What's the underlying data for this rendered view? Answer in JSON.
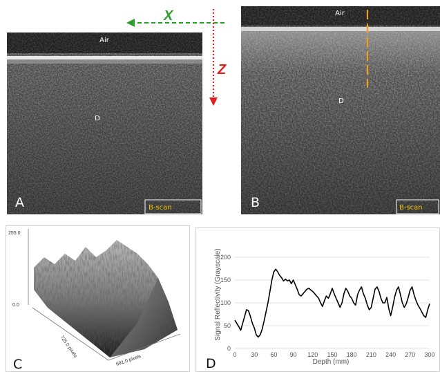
{
  "panels": {
    "A": {
      "letter": "A",
      "air_label": "Air",
      "region_label": "D",
      "scan_label": "B-scan"
    },
    "B": {
      "letter": "B",
      "air_label": "Air",
      "region_label": "D",
      "scan_label": "B-scan"
    },
    "C": {
      "letter": "C",
      "z_max_label": "255.0",
      "z_min_label": "0.0",
      "depth_axis_label": "725.0 pixels",
      "width_axis_label": "691.0 pixels"
    },
    "D": {
      "letter": "D"
    }
  },
  "axes_arrows": {
    "x_label": "X",
    "z_label": "Z",
    "x_color": "#2ca02c",
    "z_color": "#e0201a"
  },
  "line_marker_color": "#f0a020",
  "chart_data": {
    "type": "line",
    "title": "",
    "xlabel": "Depth (mm)",
    "ylabel": "Signal Reflectivity (Grayscale)",
    "xlim": [
      0,
      300
    ],
    "ylim": [
      0,
      200
    ],
    "x_ticks": [
      0,
      30,
      60,
      90,
      120,
      150,
      180,
      210,
      240,
      270,
      300
    ],
    "y_ticks": [
      0,
      50,
      100,
      150,
      200
    ],
    "grid": "horizontal",
    "series": [
      {
        "color": "#000000",
        "x": [
          0,
          3,
          6,
          9,
          12,
          15,
          18,
          21,
          24,
          27,
          30,
          33,
          36,
          39,
          42,
          45,
          48,
          51,
          54,
          57,
          60,
          63,
          66,
          69,
          72,
          75,
          78,
          81,
          84,
          87,
          90,
          93,
          96,
          99,
          102,
          105,
          108,
          111,
          114,
          117,
          120,
          123,
          126,
          129,
          132,
          135,
          138,
          141,
          144,
          147,
          150,
          153,
          156,
          159,
          162,
          165,
          168,
          171,
          174,
          177,
          180,
          183,
          186,
          189,
          192,
          195,
          198,
          201,
          204,
          207,
          210,
          213,
          216,
          219,
          222,
          225,
          228,
          231,
          234,
          237,
          240,
          243,
          246,
          249,
          252,
          255,
          258,
          261,
          264,
          267,
          270,
          273,
          276,
          279,
          282,
          285,
          288,
          291,
          294,
          297,
          300
        ],
        "y": [
          62,
          55,
          48,
          40,
          55,
          70,
          85,
          83,
          70,
          55,
          45,
          30,
          25,
          30,
          42,
          60,
          80,
          100,
          125,
          150,
          168,
          174,
          168,
          160,
          155,
          148,
          152,
          148,
          150,
          142,
          150,
          140,
          130,
          118,
          115,
          120,
          125,
          130,
          132,
          128,
          125,
          120,
          115,
          110,
          100,
          92,
          105,
          115,
          110,
          120,
          132,
          120,
          110,
          100,
          90,
          100,
          120,
          132,
          125,
          115,
          110,
          100,
          95,
          118,
          128,
          135,
          120,
          110,
          95,
          85,
          90,
          110,
          130,
          135,
          125,
          110,
          100,
          100,
          112,
          88,
          72,
          90,
          112,
          128,
          135,
          118,
          100,
          90,
          98,
          112,
          128,
          135,
          118,
          105,
          95,
          88,
          80,
          72,
          68,
          85,
          98
        ]
      }
    ]
  }
}
